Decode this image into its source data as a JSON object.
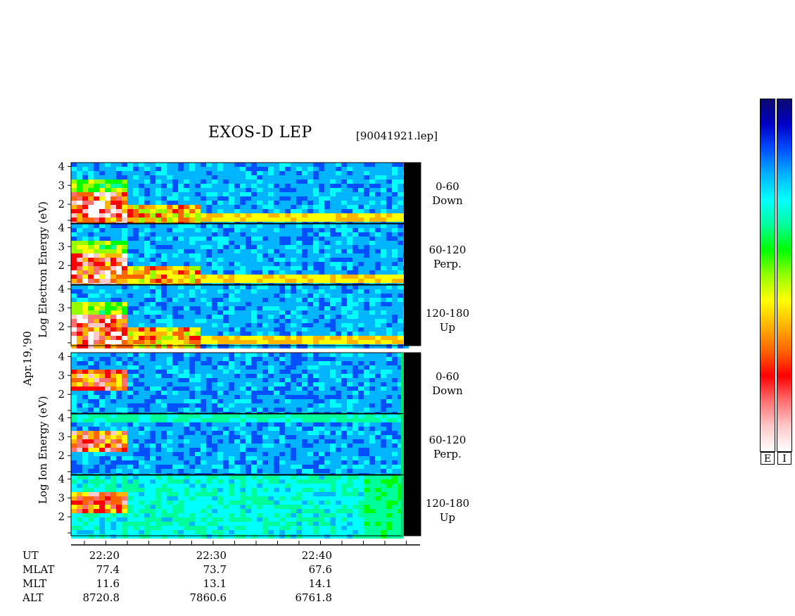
{
  "header": {
    "title": "EXOS-D LEP",
    "filename": "[90041921.lep]"
  },
  "side_labels": {
    "date": "Apr.19,'90",
    "electron_axis": "Log  Electron  Energy  (eV)",
    "ion_axis": "Log  Ion  Energy  (eV)"
  },
  "panels": [
    {
      "angle": "0-60",
      "direction": "Down",
      "species": "Electron"
    },
    {
      "angle": "60-120",
      "direction": "Perp.",
      "species": "Electron"
    },
    {
      "angle": "120-180",
      "direction": "Up",
      "species": "Electron"
    },
    {
      "angle": "0-60",
      "direction": "Down",
      "species": "Ion"
    },
    {
      "angle": "60-120",
      "direction": "Perp.",
      "species": "Ion"
    },
    {
      "angle": "120-180",
      "direction": "Up",
      "species": "Ion"
    }
  ],
  "ephemeris": {
    "row_labels": [
      "UT",
      "MLAT",
      "MLT",
      "ALT"
    ],
    "columns": [
      {
        "UT": "22:20",
        "MLAT": "77.4",
        "MLT": "11.6",
        "ALT": "8720.8"
      },
      {
        "UT": "22:30",
        "MLAT": "73.7",
        "MLT": "13.1",
        "ALT": "7860.6"
      },
      {
        "UT": "22:40",
        "MLAT": "67.6",
        "MLT": "14.1",
        "ALT": "6761.8"
      }
    ]
  },
  "colorbar": {
    "labels": [
      "E",
      "I"
    ],
    "colors": [
      "#0a0a6e",
      "#0000c8",
      "#0050ff",
      "#00b4ff",
      "#00ffff",
      "#00ff9a",
      "#00ff00",
      "#96ff00",
      "#ffff00",
      "#ffb400",
      "#ff6400",
      "#ff0000",
      "#ff7070",
      "#ffc8c8",
      "#ffffff"
    ]
  },
  "chart_data": {
    "type": "heatmap",
    "title": "EXOS-D LEP",
    "ylabel": "Log Energy (eV)",
    "xlabel": "UT",
    "x_ticks": [
      "22:20",
      "22:30",
      "22:40"
    ],
    "y_ticks": [
      "2",
      "3",
      "4"
    ],
    "ylim": [
      1,
      4.2
    ],
    "panels": [
      "Electron 0-60 Down",
      "Electron 60-120 Perp.",
      "Electron 120-180 Up",
      "Ion 0-60 Down",
      "Ion 60-120 Perp.",
      "Ion 120-180 Up"
    ]
  }
}
